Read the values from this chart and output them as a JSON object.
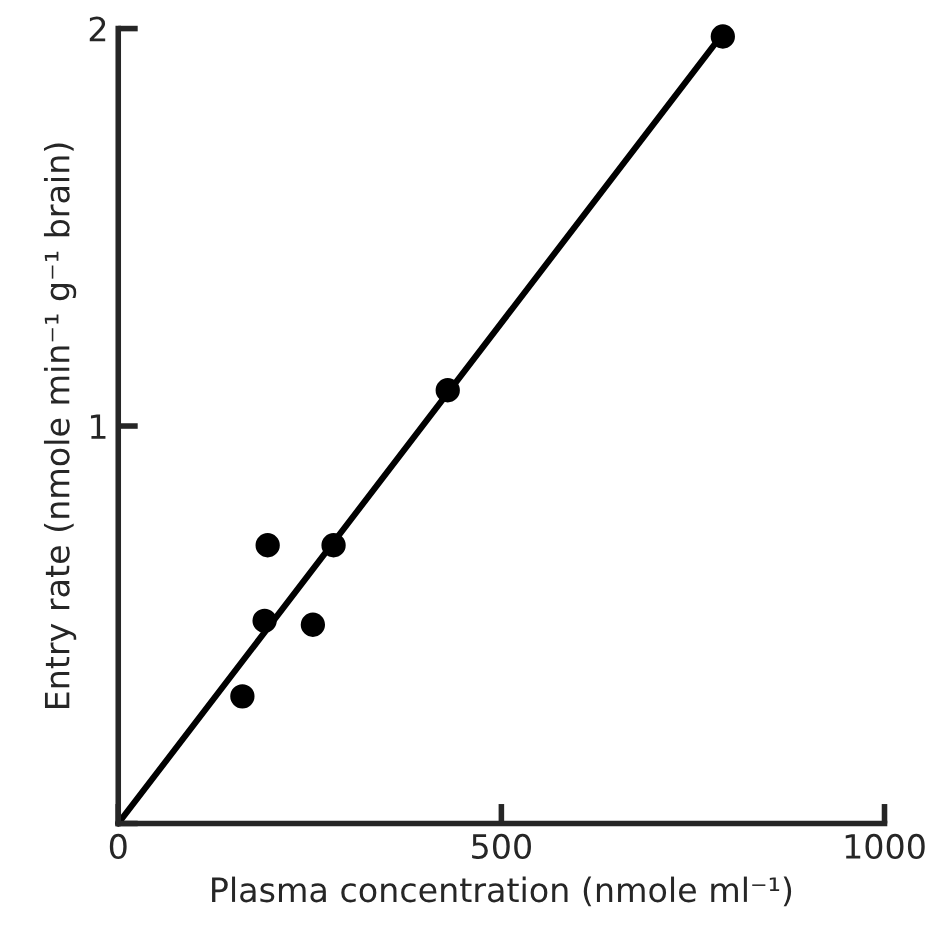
{
  "chart_data": {
    "type": "scatter",
    "xlabel": "Plasma concentration (nmole ml⁻¹)",
    "ylabel": "Entry rate (nmole min⁻¹ g⁻¹ brain)",
    "xlim": [
      0,
      1000
    ],
    "ylim": [
      0,
      2
    ],
    "xticks": [
      0,
      500,
      1000
    ],
    "yticks": [
      {
        "value": 0,
        "label": null
      },
      1,
      2
    ],
    "grid": false,
    "legend": false,
    "series": [
      {
        "color": "#000000",
        "marker": "circle",
        "x": [
          162,
          191,
          195,
          254,
          281,
          430,
          789
        ],
        "values": [
          0.32,
          0.51,
          0.7,
          0.5,
          0.7,
          1.09,
          1.98
        ]
      },
      {
        "type": "line",
        "marker": "none",
        "color": "#000000",
        "x": [
          0,
          790
        ],
        "values": [
          0,
          1.99
        ]
      }
    ]
  }
}
